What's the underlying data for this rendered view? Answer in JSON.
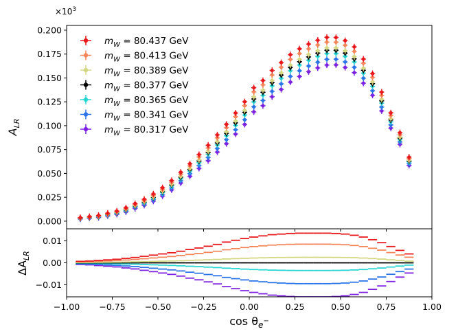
{
  "chart_data": {
    "type": "scatter",
    "title": "",
    "xlabel_main": "cos θ",
    "xlabel_sub": "e",
    "xlabel_sup": "−",
    "x_ticks": [
      "−1.00",
      "−0.75",
      "−0.50",
      "−0.25",
      "0.00",
      "0.25",
      "0.50",
      "0.75",
      "1.00"
    ],
    "xlim": [
      -1.0,
      1.0
    ],
    "top_panel": {
      "ylabel_main": "A",
      "ylabel_sub": "LR",
      "scale_note": "×10",
      "scale_exp": "3",
      "ylim": [
        -0.008,
        0.205
      ],
      "y_ticks": [
        0.0,
        0.025,
        0.05,
        0.075,
        0.1,
        0.125,
        0.15,
        0.175,
        0.2
      ],
      "y_tick_labels": [
        "0.000",
        "0.025",
        "0.050",
        "0.075",
        "0.100",
        "0.125",
        "0.150",
        "0.175",
        "0.200"
      ],
      "legend_position": "upper-left"
    },
    "bottom_panel": {
      "ylabel_main": "ΔA",
      "ylabel_sub": "LR",
      "ylim": [
        -0.0155,
        0.0155
      ],
      "y_ticks": [
        -0.01,
        0.0,
        0.01
      ],
      "y_tick_labels": [
        "−0.01",
        "0.00",
        "0.01"
      ]
    },
    "x": [
      -0.925,
      -0.875,
      -0.825,
      -0.775,
      -0.725,
      -0.675,
      -0.625,
      -0.575,
      -0.525,
      -0.475,
      -0.425,
      -0.375,
      -0.325,
      -0.275,
      -0.225,
      -0.175,
      -0.125,
      -0.075,
      -0.025,
      0.025,
      0.075,
      0.125,
      0.175,
      0.225,
      0.275,
      0.325,
      0.375,
      0.425,
      0.475,
      0.525,
      0.575,
      0.625,
      0.675,
      0.725,
      0.775,
      0.825,
      0.875
    ],
    "reference": [
      0.003,
      0.004,
      0.005,
      0.007,
      0.009,
      0.012,
      0.016,
      0.02,
      0.025,
      0.031,
      0.038,
      0.046,
      0.054,
      0.063,
      0.072,
      0.082,
      0.092,
      0.103,
      0.114,
      0.128,
      0.135,
      0.145,
      0.153,
      0.161,
      0.167,
      0.172,
      0.176,
      0.179,
      0.179,
      0.176,
      0.17,
      0.158,
      0.144,
      0.126,
      0.106,
      0.087,
      0.063
    ],
    "delta_scale": [
      0.05,
      0.06,
      0.08,
      0.1,
      0.12,
      0.15,
      0.18,
      0.22,
      0.26,
      0.3,
      0.34,
      0.39,
      0.45,
      0.5,
      0.56,
      0.62,
      0.7,
      0.76,
      0.82,
      0.87,
      0.91,
      0.95,
      0.97,
      0.99,
      1.0,
      1.0,
      1.0,
      1.0,
      0.99,
      0.97,
      0.93,
      0.87,
      0.78,
      0.68,
      0.55,
      0.42,
      0.3
    ],
    "series": [
      {
        "name": "m_W = 80.437 GeV",
        "mw_label": "80.437",
        "color": "#e8191d",
        "delta_peak": 0.0135
      },
      {
        "name": "m_W = 80.413 GeV",
        "mw_label": "80.413",
        "color": "#f5865a",
        "delta_peak": 0.0085
      },
      {
        "name": "m_W = 80.389 GeV",
        "mw_label": "80.389",
        "color": "#d5d883",
        "delta_peak": 0.0025
      },
      {
        "name": "m_W = 80.377 GeV",
        "mw_label": "80.377",
        "color": "#000000",
        "delta_peak": 0.0
      },
      {
        "name": "m_W = 80.365 GeV",
        "mw_label": "80.365",
        "color": "#27d6d2",
        "delta_peak": -0.0035
      },
      {
        "name": "m_W = 80.341 GeV",
        "mw_label": "80.341",
        "color": "#2a74e8",
        "delta_peak": -0.0095
      },
      {
        "name": "m_W = 80.317 GeV",
        "mw_label": "80.317",
        "color": "#7d22e0",
        "delta_peak": -0.0155
      }
    ],
    "legend_prefix": "m",
    "legend_prefix_sub": "W",
    "legend_suffix": "GeV"
  }
}
